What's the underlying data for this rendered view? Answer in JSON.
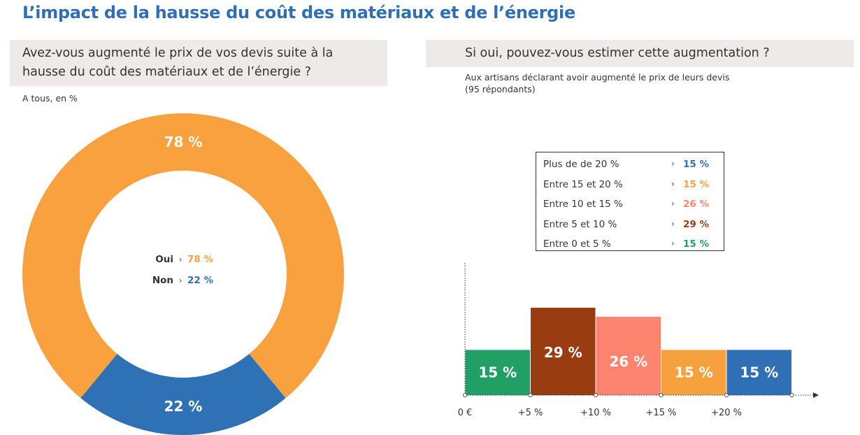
{
  "header": {
    "title": "L’impact de la hausse du coût des matériaux et de l’énergie"
  },
  "left_panel": {
    "question_line1": "Avez-vous augmenté le prix de vos devis suite à la",
    "question_line2": "hausse du coût des matériaux et de l’énergie ?",
    "base_note": "A tous, en %"
  },
  "right_panel": {
    "question": "Si oui, pouvez-vous estimer cette augmentation ?",
    "base_note_line1": "Aux artisans déclarant avoir augmenté le prix de leurs devis",
    "base_note_line2": "(95 répondants)",
    "legend": [
      {
        "label": "Plus de de 20 %",
        "value": "15 %",
        "color": "#2e6fb5"
      },
      {
        "label": "Entre 15 et 20 %",
        "value": "15 %",
        "color": "#f7a13e"
      },
      {
        "label": "Entre 10 et 15 %",
        "value": "26 %",
        "color": "#ff8470"
      },
      {
        "label": "Entre 5 et 10 %",
        "value": "29 %",
        "color": "#9a3c12"
      },
      {
        "label": "Entre 0 et 5 %",
        "value": "15 %",
        "color": "#21a066"
      }
    ],
    "arrow_symbol": "›"
  },
  "chart_data": [
    {
      "type": "pie",
      "donut": true,
      "categories": [
        "Oui",
        "Non"
      ],
      "values": [
        78,
        22
      ],
      "labels": [
        "78 %",
        "22 %"
      ],
      "center_values": [
        "78 %",
        "22 %"
      ],
      "colors": [
        "#f9a13e",
        "#2e72b5"
      ],
      "unit": "%"
    },
    {
      "type": "bar",
      "categories": [
        "Entre 0 et 5 %",
        "Entre 5 et 10 %",
        "Entre 10 et 15 %",
        "Entre 15 et 20 %",
        "Plus de de 20 %"
      ],
      "values": [
        15,
        29,
        26,
        15,
        15
      ],
      "labels": [
        "15 %",
        "29 %",
        "26 %",
        "15 %",
        "15 %"
      ],
      "colors": [
        "#21a066",
        "#9a3c12",
        "#ff8470",
        "#f7a13e",
        "#2e6fb5"
      ],
      "x_ticks": [
        "0 €",
        "+5 %",
        "+10 %",
        "+15 %",
        "+20 %"
      ],
      "unit": "%"
    }
  ]
}
